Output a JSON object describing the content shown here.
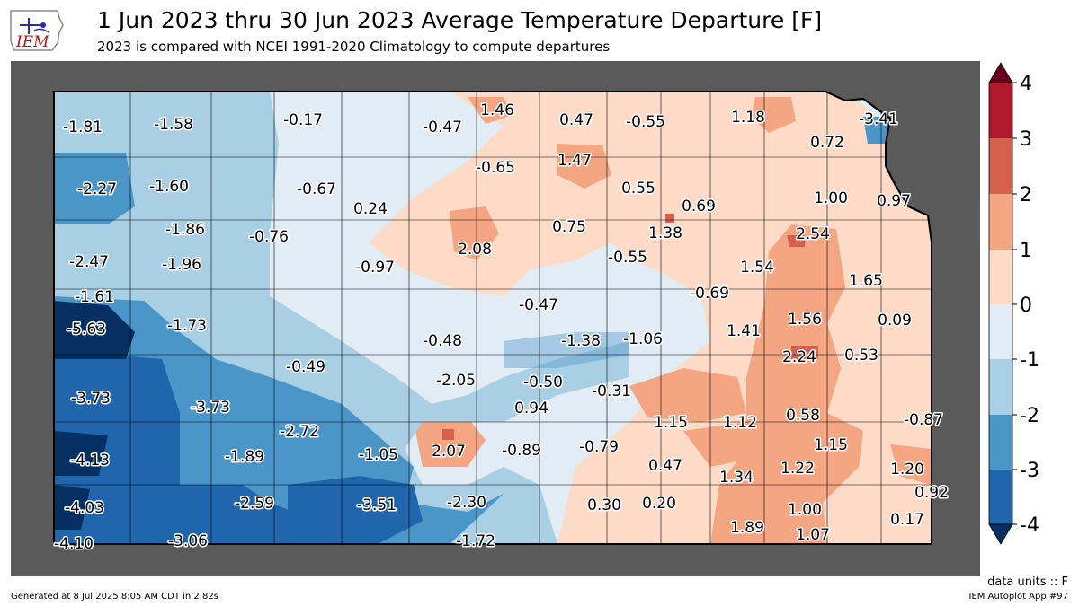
{
  "header": {
    "title": "1 Jun 2023 thru 30 Jun 2023 Average Temperature Departure [F]",
    "subtitle": "2023 is compared with NCEI 1991-2020 Climatology to compute departures",
    "logo_text": "IEM"
  },
  "colorbar": {
    "ticks": [
      "4",
      "3",
      "2",
      "1",
      "0",
      "-1",
      "-2",
      "-3",
      "-4"
    ],
    "levels": [
      {
        "from": 3,
        "to": 4,
        "color": "#b2182b"
      },
      {
        "from": 2,
        "to": 3,
        "color": "#d6604d"
      },
      {
        "from": 1,
        "to": 2,
        "color": "#f4a582"
      },
      {
        "from": 0,
        "to": 1,
        "color": "#fddbc7"
      },
      {
        "from": -1,
        "to": 0,
        "color": "#e1ecf4"
      },
      {
        "from": -2,
        "to": -1,
        "color": "#a8cfe4"
      },
      {
        "from": -3,
        "to": -2,
        "color": "#4a96c8"
      },
      {
        "from": -4,
        "to": -3,
        "color": "#2166ac"
      }
    ],
    "over_color": "#67001f",
    "under_color": "#053061"
  },
  "map": {
    "outside_color": "#5a5a5a",
    "values": [
      "-1.81",
      "-1.58",
      "-0.17",
      "-0.47",
      "1.46",
      "0.47",
      "-0.55",
      "1.18",
      "-3.41",
      "0.72",
      "-2.27",
      "-1.60",
      "-0.67",
      "-0.65",
      "1.47",
      "0.55",
      "0.69",
      "1.00",
      "0.97",
      "0.24",
      "-1.86",
      "-0.76",
      "2.08",
      "0.75",
      "1.38",
      "2.54",
      "-2.47",
      "-1.96",
      "-0.97",
      "-0.55",
      "1.54",
      "1.65",
      "-1.61",
      "-0.69",
      "-0.47",
      "1.56",
      "0.09",
      "-5.63",
      "-1.73",
      "-0.48",
      "-1.38",
      "-1.06",
      "1.41",
      "2.24",
      "0.53",
      "-0.49",
      "-3.73",
      "-2.05",
      "-0.50",
      "-0.31",
      "-3.73",
      "0.94",
      "1.15",
      "1.12",
      "0.58",
      "-0.87",
      "-2.72",
      "2.07",
      "-0.89",
      "-0.79",
      "1.15",
      "-4.13",
      "-1.89",
      "-1.05",
      "0.47",
      "1.22",
      "1.20",
      "1.34",
      "0.92",
      "-2.59",
      "-3.51",
      "-2.30",
      "-4.03",
      "0.30",
      "0.20",
      "1.00",
      "0.17",
      "1.89",
      "1.07",
      "-4.10",
      "-3.06",
      "-1.72"
    ]
  },
  "footer": {
    "units": "data units :: F",
    "generated": "Generated at 8 Jul 2025 8:05 AM CDT in 2.82s",
    "app": "IEM Autoplot App #97"
  }
}
